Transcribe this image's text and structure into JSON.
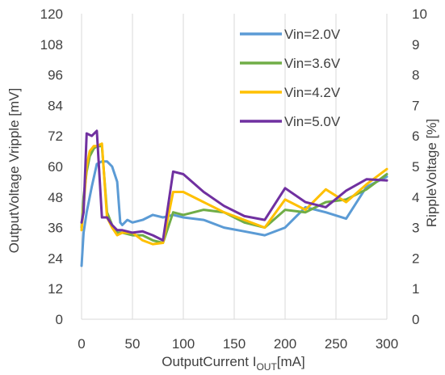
{
  "chart_data": {
    "type": "line",
    "xlabel_main": "OutputCurrent  I",
    "xlabel_sub": "OUT",
    "xlabel_unit": "[mA]",
    "ylabel_left": "OutputVoltage  Vripple [mV]",
    "ylabel_right": "RippleVoltage [%]",
    "xlim": [
      0,
      300
    ],
    "ylim_left": [
      0,
      120
    ],
    "ylim_right": [
      0,
      10
    ],
    "x_ticks": [
      0,
      50,
      100,
      150,
      200,
      250,
      300
    ],
    "y_left_ticks": [
      0,
      12,
      24,
      36,
      48,
      60,
      72,
      84,
      96,
      108,
      120
    ],
    "y_right_ticks": [
      0,
      1,
      2,
      3,
      4,
      5,
      6,
      7,
      8,
      9,
      10
    ],
    "grid": "vertical",
    "legend_position": "top-right",
    "series": [
      {
        "name": "Vin=2.0V",
        "color": "#5B9BD5",
        "x": [
          0,
          2,
          5,
          10,
          15,
          20,
          25,
          30,
          35,
          38,
          40,
          45,
          50,
          60,
          70,
          80,
          90,
          100,
          120,
          140,
          160,
          180,
          200,
          220,
          240,
          260,
          280,
          300
        ],
        "y": [
          21,
          34,
          42,
          52,
          61,
          62,
          62,
          60,
          54,
          38,
          37,
          39,
          38,
          39,
          41,
          40,
          41,
          40,
          39,
          36,
          34.5,
          33,
          36,
          44,
          42,
          39.5,
          52,
          56
        ]
      },
      {
        "name": "Vin=3.6V",
        "color": "#70AD47",
        "x": [
          0,
          2,
          5,
          8,
          12,
          15,
          20,
          25,
          30,
          35,
          40,
          50,
          60,
          70,
          80,
          90,
          100,
          120,
          140,
          160,
          180,
          200,
          220,
          240,
          260,
          280,
          300
        ],
        "y": [
          36,
          48,
          58,
          64,
          67,
          68,
          68,
          42,
          37,
          34,
          34,
          33,
          33,
          31,
          30,
          42,
          41,
          43,
          42,
          38,
          36,
          43,
          42,
          46,
          47,
          51,
          57
        ]
      },
      {
        "name": "Vin=4.2V",
        "color": "#FFC000",
        "x": [
          0,
          2,
          5,
          8,
          12,
          15,
          20,
          25,
          30,
          35,
          40,
          50,
          60,
          70,
          80,
          90,
          100,
          120,
          140,
          160,
          180,
          200,
          220,
          240,
          260,
          280,
          300
        ],
        "y": [
          35,
          44,
          60,
          66,
          68,
          68,
          69,
          40,
          36,
          33,
          34,
          34,
          31,
          29.5,
          30,
          50,
          50,
          46,
          42,
          39,
          36,
          47,
          43,
          51,
          46,
          53,
          59
        ]
      },
      {
        "name": "Vin=5.0V",
        "color": "#7030A0",
        "x": [
          0,
          2,
          5,
          10,
          15,
          20,
          25,
          30,
          35,
          40,
          50,
          60,
          70,
          80,
          90,
          100,
          120,
          140,
          160,
          180,
          200,
          220,
          240,
          260,
          280,
          300
        ],
        "y": [
          38,
          42,
          73,
          72,
          74,
          40,
          40,
          37,
          35,
          35,
          34,
          34.5,
          33,
          31,
          58,
          57,
          50,
          44.5,
          40.5,
          39,
          51.5,
          46,
          44,
          50.5,
          55,
          54.5
        ]
      }
    ]
  }
}
